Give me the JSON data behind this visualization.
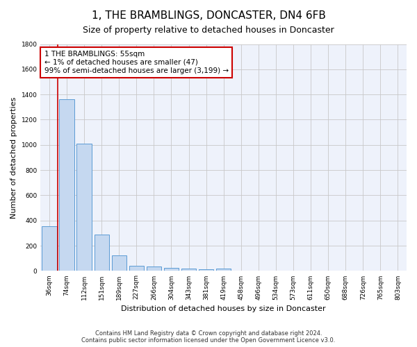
{
  "title": "1, THE BRAMBLINGS, DONCASTER, DN4 6FB",
  "subtitle": "Size of property relative to detached houses in Doncaster",
  "xlabel": "Distribution of detached houses by size in Doncaster",
  "ylabel": "Number of detached properties",
  "bar_color": "#c5d8f0",
  "bar_edge_color": "#5b9bd5",
  "background_color": "#eef2fb",
  "grid_color": "#c8c8c8",
  "categories": [
    "36sqm",
    "74sqm",
    "112sqm",
    "151sqm",
    "189sqm",
    "227sqm",
    "266sqm",
    "304sqm",
    "343sqm",
    "381sqm",
    "419sqm",
    "458sqm",
    "496sqm",
    "534sqm",
    "573sqm",
    "611sqm",
    "650sqm",
    "688sqm",
    "726sqm",
    "765sqm",
    "803sqm"
  ],
  "values": [
    355,
    1365,
    1010,
    290,
    125,
    42,
    35,
    25,
    20,
    15,
    18,
    5,
    5,
    3,
    3,
    2,
    2,
    2,
    2,
    2,
    2
  ],
  "ylim": [
    0,
    1800
  ],
  "yticks": [
    0,
    200,
    400,
    600,
    800,
    1000,
    1200,
    1400,
    1600,
    1800
  ],
  "marker_line_color": "#cc0000",
  "annotation_text": "1 THE BRAMBLINGS: 55sqm\n← 1% of detached houses are smaller (47)\n99% of semi-detached houses are larger (3,199) →",
  "annotation_box_color": "#ffffff",
  "annotation_box_edge": "#cc0000",
  "footer_line1": "Contains HM Land Registry data © Crown copyright and database right 2024.",
  "footer_line2": "Contains public sector information licensed under the Open Government Licence v3.0.",
  "title_fontsize": 11,
  "subtitle_fontsize": 9,
  "axis_label_fontsize": 8,
  "tick_fontsize": 6.5,
  "annotation_fontsize": 7.5,
  "footer_fontsize": 6
}
